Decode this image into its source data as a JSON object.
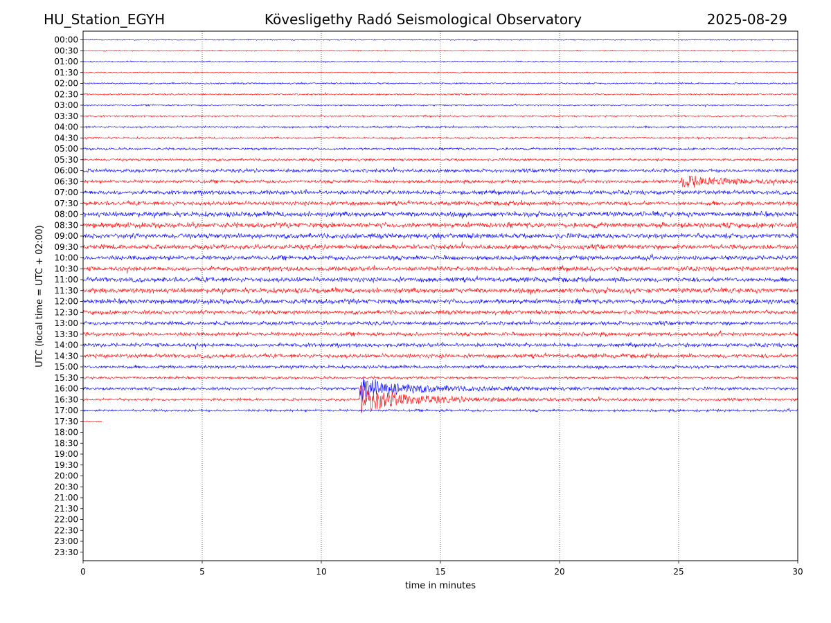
{
  "header": {
    "station": "HU_Station_EGYH",
    "observatory": "Kövesligethy Radó Seismological Observatory",
    "date": "2025-08-29"
  },
  "chart_data": {
    "type": "line",
    "title": "Kövesligethy Radó Seismological Observatory",
    "xlabel": "time in minutes",
    "ylabel": "UTC (local time = UTC + 02:00)",
    "xlim": [
      0,
      30
    ],
    "x_ticks": [
      "0",
      "5",
      "10",
      "15",
      "20",
      "25",
      "30"
    ],
    "y_ticks": [
      "00:00",
      "00:30",
      "01:00",
      "01:30",
      "02:00",
      "02:30",
      "03:00",
      "03:30",
      "04:00",
      "04:30",
      "05:00",
      "05:30",
      "06:00",
      "06:30",
      "07:00",
      "07:30",
      "08:00",
      "08:30",
      "09:00",
      "09:30",
      "10:00",
      "10:30",
      "11:00",
      "11:30",
      "12:00",
      "12:30",
      "13:00",
      "13:30",
      "14:00",
      "14:30",
      "15:00",
      "15:30",
      "16:00",
      "16:30",
      "17:00",
      "17:30",
      "18:00",
      "18:30",
      "19:00",
      "19:30",
      "20:00",
      "20:30",
      "21:00",
      "21:30",
      "22:00",
      "22:30",
      "23:00",
      "23:30"
    ],
    "grid": "vertical dotted at 5 min intervals",
    "colors": {
      "even_rows": "#0000ff",
      "odd_rows": "#ff0000"
    },
    "traces": [
      {
        "row": "00:00",
        "duration_min": 30,
        "amplitude": 0.7
      },
      {
        "row": "00:30",
        "duration_min": 30,
        "amplitude": 0.7
      },
      {
        "row": "01:00",
        "duration_min": 30,
        "amplitude": 0.8
      },
      {
        "row": "01:30",
        "duration_min": 30,
        "amplitude": 0.7
      },
      {
        "row": "02:00",
        "duration_min": 30,
        "amplitude": 1.0
      },
      {
        "row": "02:30",
        "duration_min": 30,
        "amplitude": 1.0
      },
      {
        "row": "03:00",
        "duration_min": 30,
        "amplitude": 0.9
      },
      {
        "row": "03:30",
        "duration_min": 30,
        "amplitude": 1.0
      },
      {
        "row": "04:00",
        "duration_min": 30,
        "amplitude": 1.2
      },
      {
        "row": "04:30",
        "duration_min": 30,
        "amplitude": 1.1
      },
      {
        "row": "05:00",
        "duration_min": 30,
        "amplitude": 1.4
      },
      {
        "row": "05:30",
        "duration_min": 30,
        "amplitude": 1.5
      },
      {
        "row": "06:00",
        "duration_min": 30,
        "amplitude": 2.2
      },
      {
        "row": "06:30",
        "duration_min": 30,
        "amplitude": 2.0,
        "event_min": 25.1,
        "event_amp": 7
      },
      {
        "row": "07:00",
        "duration_min": 30,
        "amplitude": 2.6
      },
      {
        "row": "07:30",
        "duration_min": 30,
        "amplitude": 2.6
      },
      {
        "row": "08:00",
        "duration_min": 30,
        "amplitude": 3.2
      },
      {
        "row": "08:30",
        "duration_min": 30,
        "amplitude": 3.2
      },
      {
        "row": "09:00",
        "duration_min": 30,
        "amplitude": 3.2
      },
      {
        "row": "09:30",
        "duration_min": 30,
        "amplitude": 3.0
      },
      {
        "row": "10:00",
        "duration_min": 30,
        "amplitude": 2.8
      },
      {
        "row": "10:30",
        "duration_min": 30,
        "amplitude": 2.8
      },
      {
        "row": "11:00",
        "duration_min": 30,
        "amplitude": 3.0
      },
      {
        "row": "11:30",
        "duration_min": 30,
        "amplitude": 3.2
      },
      {
        "row": "12:00",
        "duration_min": 30,
        "amplitude": 3.0
      },
      {
        "row": "12:30",
        "duration_min": 30,
        "amplitude": 2.6
      },
      {
        "row": "13:00",
        "duration_min": 30,
        "amplitude": 2.4
      },
      {
        "row": "13:30",
        "duration_min": 30,
        "amplitude": 2.4
      },
      {
        "row": "14:00",
        "duration_min": 30,
        "amplitude": 2.4
      },
      {
        "row": "14:30",
        "duration_min": 30,
        "amplitude": 2.6
      },
      {
        "row": "15:00",
        "duration_min": 30,
        "amplitude": 2.0
      },
      {
        "row": "15:30",
        "duration_min": 30,
        "amplitude": 1.6
      },
      {
        "row": "16:00",
        "duration_min": 30,
        "amplitude": 1.8,
        "event_min": 11.6,
        "event_amp": 14
      },
      {
        "row": "16:30",
        "duration_min": 30,
        "amplitude": 1.6,
        "event_min": 11.6,
        "event_amp": 16
      },
      {
        "row": "17:00",
        "duration_min": 30,
        "amplitude": 1.5
      },
      {
        "row": "17:30",
        "duration_min": 0.8,
        "amplitude": 0.8
      }
    ]
  }
}
